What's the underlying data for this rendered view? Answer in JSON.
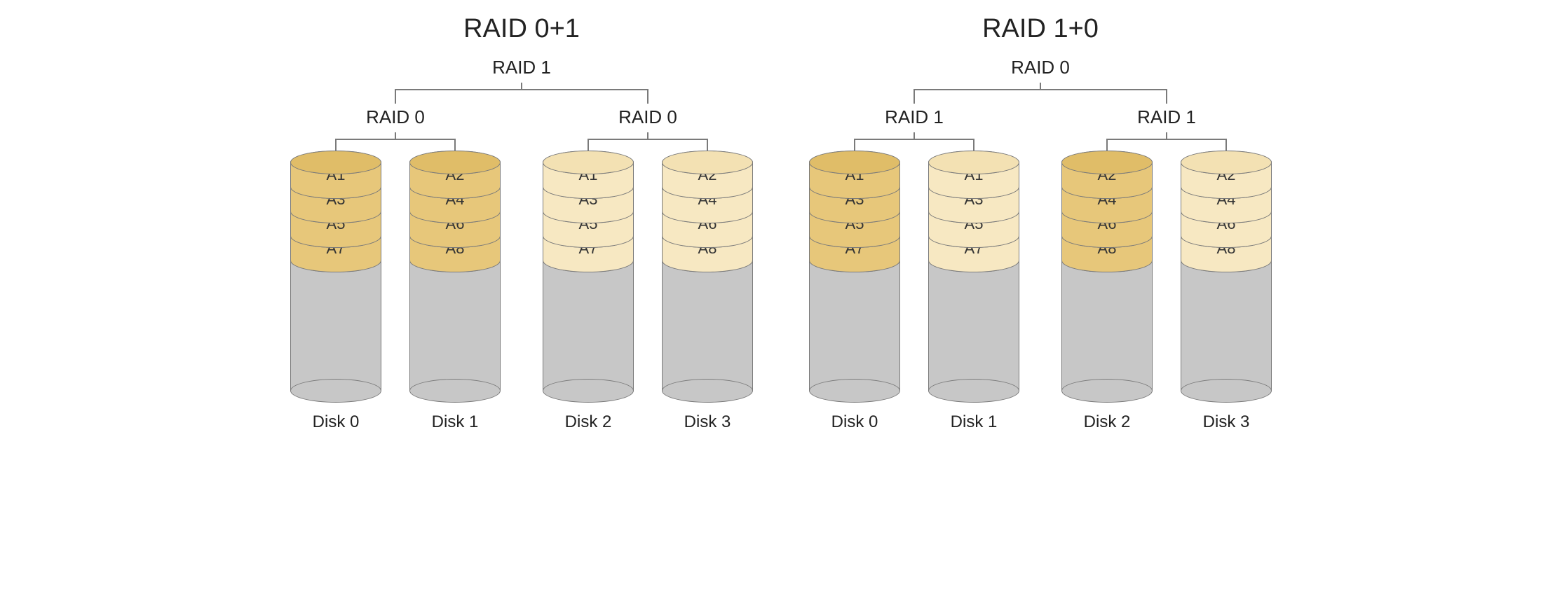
{
  "colors": {
    "dark_fill": "#e7c77a",
    "dark_top": "#e0bd68",
    "light_fill": "#f7e8c2",
    "light_top": "#f3e1b3",
    "gray_fill": "#c7c7c7",
    "gray_top": "#c0c0c0",
    "stroke": "#7a7a7a",
    "bg": "#ffffff",
    "text": "#222222"
  },
  "layout": {
    "cylinder_width": 130,
    "cylinder_height": 360,
    "ellipse_height": 34,
    "slice_step": 35,
    "slice_count": 4,
    "title_fontsize": 38,
    "sublabel_fontsize": 26,
    "slice_fontsize": 22,
    "disklabel_fontsize": 24
  },
  "diagrams": [
    {
      "title": "RAID 0+1",
      "upper_label": "RAID 1",
      "groups": [
        {
          "label": "RAID 0",
          "disks": [
            {
              "name": "Disk 0",
              "shade": "dark",
              "slices": [
                "A1",
                "A3",
                "A5",
                "A7"
              ]
            },
            {
              "name": "Disk 1",
              "shade": "dark",
              "slices": [
                "A2",
                "A4",
                "A6",
                "A8"
              ]
            }
          ]
        },
        {
          "label": "RAID 0",
          "disks": [
            {
              "name": "Disk 2",
              "shade": "light",
              "slices": [
                "A1",
                "A3",
                "A5",
                "A7"
              ]
            },
            {
              "name": "Disk 3",
              "shade": "light",
              "slices": [
                "A2",
                "A4",
                "A6",
                "A8"
              ]
            }
          ]
        }
      ]
    },
    {
      "title": "RAID 1+0",
      "upper_label": "RAID 0",
      "groups": [
        {
          "label": "RAID 1",
          "disks": [
            {
              "name": "Disk 0",
              "shade": "dark",
              "slices": [
                "A1",
                "A3",
                "A5",
                "A7"
              ]
            },
            {
              "name": "Disk 1",
              "shade": "light",
              "slices": [
                "A1",
                "A3",
                "A5",
                "A7"
              ]
            }
          ]
        },
        {
          "label": "RAID 1",
          "disks": [
            {
              "name": "Disk 2",
              "shade": "dark",
              "slices": [
                "A2",
                "A4",
                "A6",
                "A8"
              ]
            },
            {
              "name": "Disk 3",
              "shade": "light",
              "slices": [
                "A2",
                "A4",
                "A6",
                "A8"
              ]
            }
          ]
        }
      ]
    }
  ]
}
